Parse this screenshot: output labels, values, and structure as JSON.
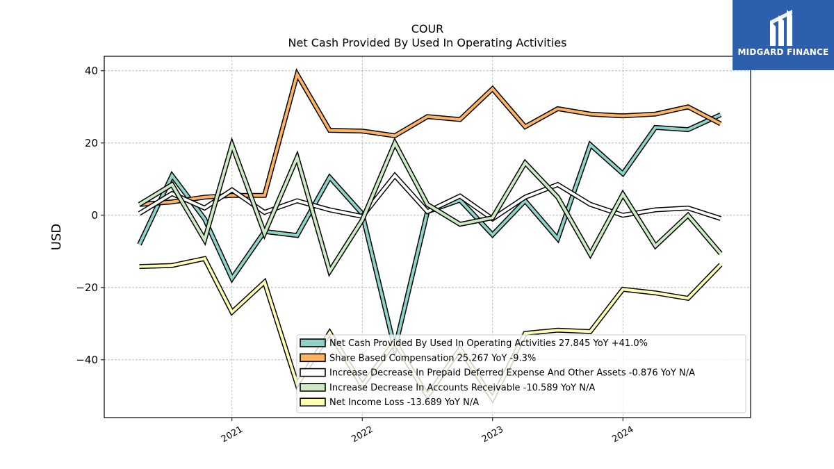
{
  "logo": {
    "text": "MIDGARD FINANCE"
  },
  "chart_data": {
    "type": "line",
    "title": "COUR",
    "subtitle": "Net Cash Provided By Used In Operating Activities",
    "xlabel": "",
    "ylabel": "USD",
    "ylim": [
      -56,
      44
    ],
    "xlim": [
      2020.02,
      2024.98
    ],
    "yticks": [
      40,
      20,
      0,
      -20,
      -40
    ],
    "ytick_labels": [
      "40",
      "20",
      "0",
      "−20",
      "−40"
    ],
    "xticks": [
      2021,
      2022,
      2023,
      2024
    ],
    "xtick_labels": [
      "2021",
      "2022",
      "2023",
      "2024"
    ],
    "grid": true,
    "legend_position": "bottom-right",
    "x": [
      2020.29,
      2020.54,
      2020.79,
      2021.0,
      2021.25,
      2021.5,
      2021.75,
      2022.0,
      2022.25,
      2022.5,
      2022.75,
      2023.0,
      2023.25,
      2023.5,
      2023.75,
      2024.0,
      2024.25,
      2024.5,
      2024.75
    ],
    "series": [
      {
        "name": "Net Cash Provided By Used In Operating Activities  27.845 YoY +41.0%",
        "color": "#8dd3c7",
        "values": [
          -8.1,
          11.0,
          -1.0,
          -17.5,
          -4.5,
          -5.6,
          10.5,
          0.4,
          -37.0,
          1.0,
          4.2,
          -5.4,
          4.0,
          -6.5,
          19.5,
          11.5,
          24.3,
          23.7,
          27.8
        ]
      },
      {
        "name": "Share Based Compensation  25.267 YoY -9.3%",
        "color": "#fdb462",
        "values": [
          3.0,
          3.7,
          5.0,
          5.5,
          5.5,
          39.0,
          23.5,
          23.3,
          22.0,
          27.3,
          26.5,
          35.0,
          24.5,
          29.5,
          28.0,
          27.5,
          28.0,
          30.0,
          25.3
        ]
      },
      {
        "name": "Increase Decrease In Prepaid Deferred Expense And Other Assets  -0.876 YoY N/A",
        "color": "#ffffff",
        "values": [
          0.5,
          6.0,
          2.0,
          7.0,
          0.8,
          4.0,
          1.5,
          -0.3,
          11.0,
          1.0,
          5.3,
          -1.0,
          5.0,
          8.5,
          3.0,
          0.0,
          1.5,
          2.0,
          -0.9
        ]
      },
      {
        "name": "Increase Decrease In Accounts Receivable  -10.589 YoY N/A",
        "color": "#ccebc5",
        "values": [
          3.0,
          8.5,
          -6.8,
          19.5,
          -5.0,
          16.0,
          -15.5,
          -1.3,
          20.0,
          3.0,
          -2.5,
          -0.7,
          14.5,
          5.0,
          -10.8,
          5.8,
          -8.5,
          0.0,
          -10.6
        ]
      },
      {
        "name": "Net Income Loss  -13.689 YoY N/A",
        "color": "#ffffb3",
        "values": [
          -14.2,
          -13.9,
          -12.0,
          -26.8,
          -18.5,
          -46.8,
          -32.5,
          -47.2,
          -35.0,
          -50.0,
          -37.0,
          -50.8,
          -32.7,
          -31.8,
          -32.2,
          -20.5,
          -21.5,
          -23.0,
          -13.7
        ]
      }
    ]
  }
}
